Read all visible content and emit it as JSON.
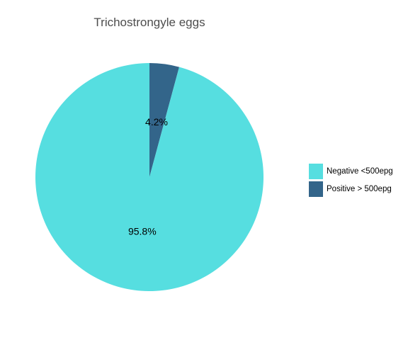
{
  "chart_data": {
    "type": "pie",
    "title": "Trichostrongyle eggs",
    "categories": [
      "Negative <500epg",
      "Positive > 500epg"
    ],
    "values": [
      95.8,
      4.2
    ],
    "labels": [
      "95.8%",
      "4.2%"
    ],
    "colors": [
      "#56DEE0",
      "#33658A"
    ],
    "start_angle_deg": 0,
    "direction": "clockwise",
    "legend_position": "right",
    "grid": false
  }
}
